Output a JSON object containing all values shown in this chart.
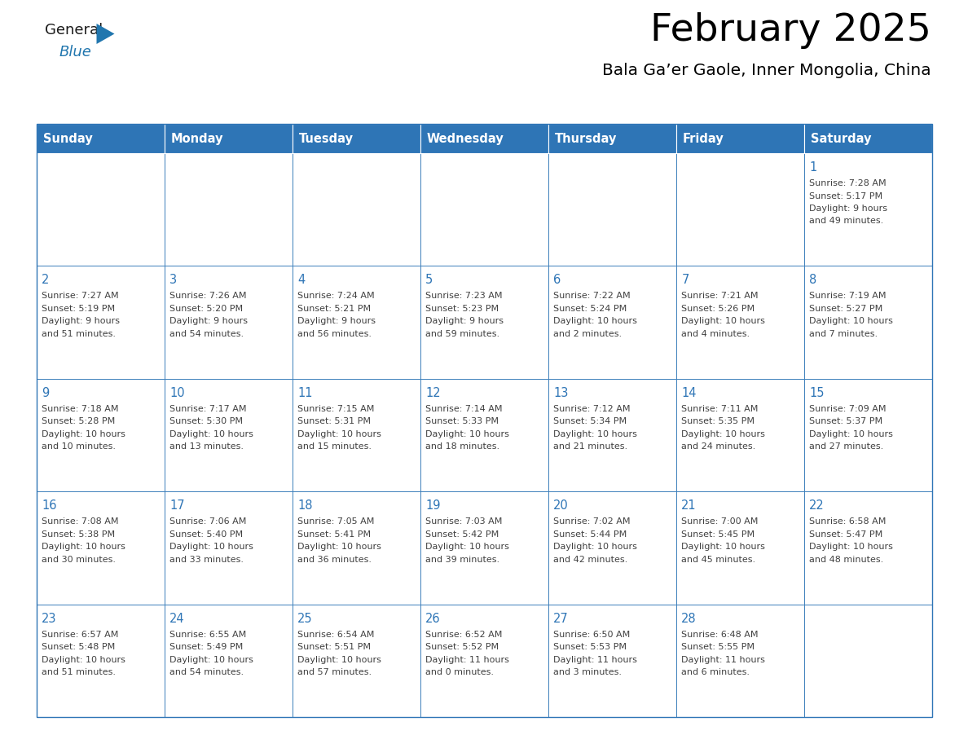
{
  "title": "February 2025",
  "subtitle": "Bala Ga’er Gaole, Inner Mongolia, China",
  "header_bg": "#2E75B6",
  "header_text_color": "#FFFFFF",
  "cell_bg": "#FFFFFF",
  "cell_border_color": "#2E75B6",
  "day_number_color": "#2E75B6",
  "info_text_color": "#404040",
  "days_of_week": [
    "Sunday",
    "Monday",
    "Tuesday",
    "Wednesday",
    "Thursday",
    "Friday",
    "Saturday"
  ],
  "logo_general_color": "#1a1a1a",
  "logo_blue_color": "#2176AE",
  "calendar_data": [
    [
      null,
      null,
      null,
      null,
      null,
      null,
      {
        "day": 1,
        "sunrise": "7:28 AM",
        "sunset": "5:17 PM",
        "daylight": "9 hours and 49 minutes."
      }
    ],
    [
      {
        "day": 2,
        "sunrise": "7:27 AM",
        "sunset": "5:19 PM",
        "daylight": "9 hours and 51 minutes."
      },
      {
        "day": 3,
        "sunrise": "7:26 AM",
        "sunset": "5:20 PM",
        "daylight": "9 hours and 54 minutes."
      },
      {
        "day": 4,
        "sunrise": "7:24 AM",
        "sunset": "5:21 PM",
        "daylight": "9 hours and 56 minutes."
      },
      {
        "day": 5,
        "sunrise": "7:23 AM",
        "sunset": "5:23 PM",
        "daylight": "9 hours and 59 minutes."
      },
      {
        "day": 6,
        "sunrise": "7:22 AM",
        "sunset": "5:24 PM",
        "daylight": "10 hours and 2 minutes."
      },
      {
        "day": 7,
        "sunrise": "7:21 AM",
        "sunset": "5:26 PM",
        "daylight": "10 hours and 4 minutes."
      },
      {
        "day": 8,
        "sunrise": "7:19 AM",
        "sunset": "5:27 PM",
        "daylight": "10 hours and 7 minutes."
      }
    ],
    [
      {
        "day": 9,
        "sunrise": "7:18 AM",
        "sunset": "5:28 PM",
        "daylight": "10 hours and 10 minutes."
      },
      {
        "day": 10,
        "sunrise": "7:17 AM",
        "sunset": "5:30 PM",
        "daylight": "10 hours and 13 minutes."
      },
      {
        "day": 11,
        "sunrise": "7:15 AM",
        "sunset": "5:31 PM",
        "daylight": "10 hours and 15 minutes."
      },
      {
        "day": 12,
        "sunrise": "7:14 AM",
        "sunset": "5:33 PM",
        "daylight": "10 hours and 18 minutes."
      },
      {
        "day": 13,
        "sunrise": "7:12 AM",
        "sunset": "5:34 PM",
        "daylight": "10 hours and 21 minutes."
      },
      {
        "day": 14,
        "sunrise": "7:11 AM",
        "sunset": "5:35 PM",
        "daylight": "10 hours and 24 minutes."
      },
      {
        "day": 15,
        "sunrise": "7:09 AM",
        "sunset": "5:37 PM",
        "daylight": "10 hours and 27 minutes."
      }
    ],
    [
      {
        "day": 16,
        "sunrise": "7:08 AM",
        "sunset": "5:38 PM",
        "daylight": "10 hours and 30 minutes."
      },
      {
        "day": 17,
        "sunrise": "7:06 AM",
        "sunset": "5:40 PM",
        "daylight": "10 hours and 33 minutes."
      },
      {
        "day": 18,
        "sunrise": "7:05 AM",
        "sunset": "5:41 PM",
        "daylight": "10 hours and 36 minutes."
      },
      {
        "day": 19,
        "sunrise": "7:03 AM",
        "sunset": "5:42 PM",
        "daylight": "10 hours and 39 minutes."
      },
      {
        "day": 20,
        "sunrise": "7:02 AM",
        "sunset": "5:44 PM",
        "daylight": "10 hours and 42 minutes."
      },
      {
        "day": 21,
        "sunrise": "7:00 AM",
        "sunset": "5:45 PM",
        "daylight": "10 hours and 45 minutes."
      },
      {
        "day": 22,
        "sunrise": "6:58 AM",
        "sunset": "5:47 PM",
        "daylight": "10 hours and 48 minutes."
      }
    ],
    [
      {
        "day": 23,
        "sunrise": "6:57 AM",
        "sunset": "5:48 PM",
        "daylight": "10 hours and 51 minutes."
      },
      {
        "day": 24,
        "sunrise": "6:55 AM",
        "sunset": "5:49 PM",
        "daylight": "10 hours and 54 minutes."
      },
      {
        "day": 25,
        "sunrise": "6:54 AM",
        "sunset": "5:51 PM",
        "daylight": "10 hours and 57 minutes."
      },
      {
        "day": 26,
        "sunrise": "6:52 AM",
        "sunset": "5:52 PM",
        "daylight": "11 hours and 0 minutes."
      },
      {
        "day": 27,
        "sunrise": "6:50 AM",
        "sunset": "5:53 PM",
        "daylight": "11 hours and 3 minutes."
      },
      {
        "day": 28,
        "sunrise": "6:48 AM",
        "sunset": "5:55 PM",
        "daylight": "11 hours and 6 minutes."
      },
      null
    ]
  ]
}
